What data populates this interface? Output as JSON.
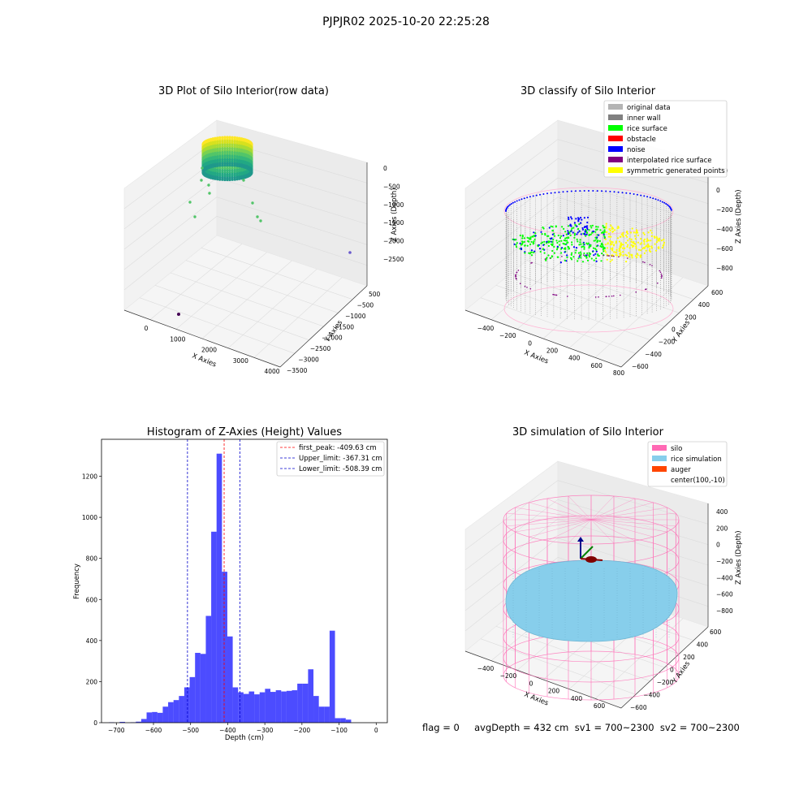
{
  "figure": {
    "suptitle": "PJPJR02 2025-10-20 22:25:28",
    "status_line": "flag = 0     avgDepth = 432 cm  sv1 = 700~2300  sv2 = 700~2300"
  },
  "chart_data": [
    {
      "type": "scatter",
      "projection": "3d",
      "title": "3D Plot of Silo Interior(row data)",
      "xlabel": "X Axies",
      "ylabel": "Y Axies",
      "zlabel": "Z Axies (Depth)",
      "x_ticks": [
        "0",
        "1000",
        "2000",
        "3000",
        "4000"
      ],
      "y_ticks": [
        "500",
        "−500",
        "−1000",
        "−1500",
        "−2000",
        "−2500",
        "−3000",
        "−3500"
      ],
      "z_ticks": [
        "0",
        "−500",
        "−1000",
        "−1500",
        "−2000",
        "−2500"
      ],
      "colormap": "viridis"
    },
    {
      "type": "scatter",
      "projection": "3d",
      "title": "3D classify of Silo Interior",
      "xlabel": "X Axies",
      "ylabel": "Y Axies",
      "zlabel": "Z Axies (Depth)",
      "x_ticks": [
        "−400",
        "−200",
        "0",
        "200",
        "400",
        "600",
        "800"
      ],
      "y_ticks": [
        "600",
        "400",
        "200",
        "0",
        "−200",
        "−400",
        "−600"
      ],
      "z_ticks": [
        "200",
        "0",
        "−200",
        "−400",
        "−600",
        "−800"
      ],
      "legend_position": "top-right",
      "legend": [
        {
          "label": "original data",
          "color": "#b4b4b4"
        },
        {
          "label": "inner wall",
          "color": "#808080"
        },
        {
          "label": "rice surface",
          "color": "#00ff00"
        },
        {
          "label": "obstacle",
          "color": "#ff0000"
        },
        {
          "label": "noise",
          "color": "#0000ff"
        },
        {
          "label": "interpolated rice surface",
          "color": "#800080"
        },
        {
          "label": "symmetric generated points",
          "color": "#ffff00"
        }
      ]
    },
    {
      "type": "bar",
      "title": "Histogram of Z-Axies (Height) Values",
      "xlabel": "Depth (cm)",
      "ylabel": "Frequency",
      "xlim": [
        -740,
        30
      ],
      "ylim": [
        0,
        1380
      ],
      "x_ticks": [
        -700,
        -600,
        -500,
        -400,
        -300,
        -200,
        -100,
        0
      ],
      "x_tick_labels": [
        "−700",
        "−600",
        "−500",
        "−400",
        "−300",
        "−200",
        "−100",
        "0"
      ],
      "y_ticks": [
        0,
        200,
        400,
        600,
        800,
        1000,
        1200
      ],
      "bin_start": -720,
      "bin_width": 14.5,
      "values": [
        2,
        0,
        4,
        0,
        2,
        5,
        18,
        50,
        52,
        48,
        78,
        100,
        110,
        130,
        172,
        222,
        340,
        335,
        520,
        930,
        1310,
        735,
        420,
        172,
        148,
        140,
        152,
        138,
        148,
        165,
        150,
        158,
        152,
        155,
        158,
        190,
        190,
        260,
        130,
        78,
        78,
        448,
        22,
        22,
        15
      ],
      "bar_color": "#0000ff",
      "bar_opacity": 0.7,
      "lines": [
        {
          "label": "first_peak: -409.63 cm",
          "x": -409.63,
          "color": "#ff0000"
        },
        {
          "label": "Upper_limit: -367.31 cm",
          "x": -367.31,
          "color": "#0000cc"
        },
        {
          "label": "Lower_limit: -508.39 cm",
          "x": -508.39,
          "color": "#0000cc"
        }
      ],
      "legend_position": "top-right"
    },
    {
      "type": "scatter",
      "projection": "3d",
      "title": "3D simulation of Silo Interior",
      "xlabel": "X Axies",
      "ylabel": "Y Axies",
      "zlabel": "Z Axies (Depth)",
      "x_ticks": [
        "−400",
        "−200",
        "0",
        "200",
        "400",
        "600"
      ],
      "y_ticks": [
        "600",
        "400",
        "200",
        "0",
        "−200",
        "−400",
        "−600"
      ],
      "z_ticks": [
        "400",
        "200",
        "0",
        "−200",
        "−400",
        "−600",
        "−800"
      ],
      "legend_position": "top-right",
      "legend": [
        {
          "label": "silo",
          "color": "#ff69b4"
        },
        {
          "label": "rice simulation",
          "color": "#87ceeb"
        },
        {
          "label": "auger",
          "color": "#ff4500"
        },
        {
          "label": "center(100,-10)",
          "color": "none"
        }
      ]
    }
  ]
}
